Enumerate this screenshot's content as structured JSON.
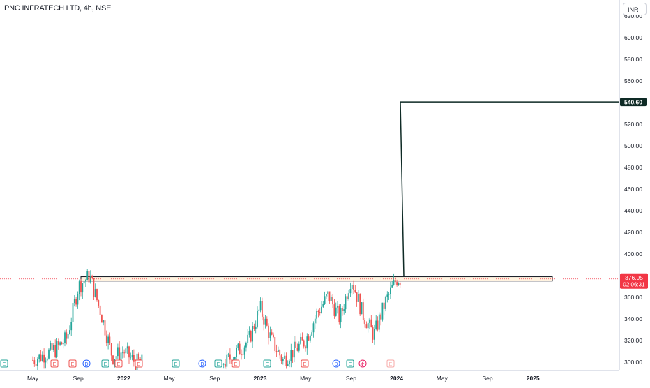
{
  "header": {
    "symbol_title": "PNC INFRATECH LTD, 4h, NSE",
    "currency_button": "INR"
  },
  "colors": {
    "up": "#26a69a",
    "down": "#ef5350",
    "trendline": "#0e2a25",
    "zone_border": "#131722",
    "zone_fill": "#fff3e0",
    "last_price_bg": "#f23645",
    "target_bg": "#0e2a25"
  },
  "chart_data": {
    "type": "candlestick",
    "symbol": "PNC INFRATECH LTD",
    "interval": "4h",
    "exchange": "NSE",
    "currency": "INR",
    "y_ticks": [
      "300.00",
      "320.00",
      "340.00",
      "360.00",
      "380.00",
      "400.00",
      "420.00",
      "440.00",
      "460.00",
      "480.00",
      "500.00",
      "520.00",
      "540.00",
      "560.00",
      "580.00",
      "600.00",
      "620.00"
    ],
    "x_ticks": [
      "May",
      "Sep",
      "2022",
      "May",
      "Sep",
      "2023",
      "May",
      "Sep",
      "2024",
      "May",
      "Sep",
      "2025"
    ],
    "ylim": [
      295,
      625
    ],
    "last_price": {
      "value": "376.95",
      "countdown": "02:06:31"
    },
    "target_price": "540.60",
    "resistance_zone": [
      375,
      379
    ],
    "price_path": [
      {
        "t": "2021-05",
        "close": 302
      },
      {
        "t": "2021-07",
        "close": 312
      },
      {
        "t": "2021-08",
        "close": 322
      },
      {
        "t": "2021-09",
        "close": 370
      },
      {
        "t": "2021-10",
        "close": 380
      },
      {
        "t": "2021-11",
        "close": 345
      },
      {
        "t": "2021-12",
        "close": 305
      },
      {
        "t": "2022-01",
        "close": 310
      },
      {
        "t": "2022-02",
        "close": 300
      },
      {
        "t": "2022-10",
        "close": 300
      },
      {
        "t": "2022-12",
        "close": 320
      },
      {
        "t": "2023-01",
        "close": 350
      },
      {
        "t": "2023-02",
        "close": 320
      },
      {
        "t": "2023-03",
        "close": 302
      },
      {
        "t": "2023-05",
        "close": 320
      },
      {
        "t": "2023-06",
        "close": 345
      },
      {
        "t": "2023-07",
        "close": 362
      },
      {
        "t": "2023-08",
        "close": 340
      },
      {
        "t": "2023-09",
        "close": 378
      },
      {
        "t": "2023-10",
        "close": 345
      },
      {
        "t": "2023-11",
        "close": 325
      },
      {
        "t": "2023-12",
        "close": 355
      },
      {
        "t": "2024-01",
        "close": 377
      }
    ],
    "event_markers": [
      {
        "type": "E",
        "color": "green"
      },
      {
        "type": "E",
        "color": "red"
      },
      {
        "type": "E",
        "color": "red"
      },
      {
        "type": "D",
        "color": "blue"
      },
      {
        "type": "E",
        "color": "green"
      },
      {
        "type": "E",
        "color": "red"
      },
      {
        "type": "E",
        "color": "red"
      },
      {
        "type": "E",
        "color": "green"
      },
      {
        "type": "D",
        "color": "blue"
      },
      {
        "type": "E",
        "color": "green"
      },
      {
        "type": "E",
        "color": "red"
      },
      {
        "type": "E",
        "color": "green"
      },
      {
        "type": "E",
        "color": "red"
      },
      {
        "type": "D",
        "color": "blue"
      },
      {
        "type": "E",
        "color": "green"
      },
      {
        "type": "split",
        "color": "red"
      },
      {
        "type": "E",
        "color": "faded-red"
      }
    ]
  }
}
